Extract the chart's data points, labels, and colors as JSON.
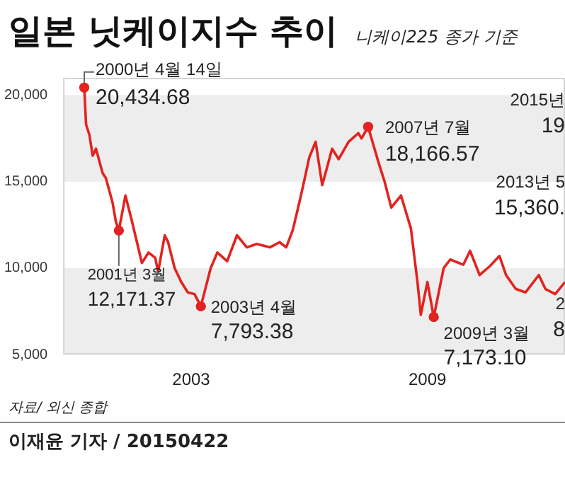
{
  "chart_data": {
    "type": "line",
    "title": "일본 닛케이지수 추이",
    "subtitle": "니케이225 종가 기준",
    "x": [
      "2000-04-14",
      "2000-05",
      "2000-06",
      "2000-07",
      "2000-08",
      "2000-10",
      "2000-11",
      "2001-01",
      "2001-02",
      "2001-03",
      "2001-05",
      "2001-07",
      "2001-10",
      "2001-12",
      "2002-02",
      "2002-03",
      "2002-05",
      "2002-06",
      "2002-08",
      "2002-10",
      "2002-12",
      "2003-02",
      "2003-04",
      "2003-07",
      "2003-09",
      "2003-12",
      "2004-03",
      "2004-06",
      "2004-09",
      "2005-01",
      "2005-04",
      "2005-06",
      "2005-08",
      "2005-10",
      "2005-12",
      "2006-01",
      "2006-03",
      "2006-05",
      "2006-08",
      "2006-10",
      "2007-01",
      "2007-04",
      "2007-05",
      "2007-07",
      "2007-10",
      "2007-12",
      "2008-02",
      "2008-05",
      "2008-08",
      "2008-10",
      "2008-11",
      "2009-01",
      "2009-03",
      "2009-06",
      "2009-08",
      "2009-12",
      "2010-02",
      "2010-05",
      "2010-08",
      "2010-11",
      "2011-01",
      "2011-04",
      "2011-07",
      "2011-11",
      "2012-01",
      "2012-04",
      "2012-07"
    ],
    "series": [
      {
        "color": "#e2231f",
        "values": [
          20434.68,
          18300,
          17700,
          16500,
          16900,
          15500,
          15200,
          13800,
          12700,
          12171.37,
          14200,
          12700,
          10300,
          10900,
          10600,
          9800,
          11900,
          11500,
          10000,
          9200,
          8600,
          8500,
          7793.38,
          10000,
          10900,
          10400,
          11900,
          11200,
          11400,
          11200,
          11500,
          11200,
          12200,
          13800,
          15500,
          16400,
          17300,
          14800,
          16900,
          16300,
          17300,
          17800,
          17500,
          18166.57,
          16200,
          15000,
          13500,
          14200,
          12300,
          9200,
          7300,
          9200,
          7173.1,
          10000,
          10500,
          10200,
          11000,
          9600,
          10100,
          10700,
          9600,
          8800,
          8600,
          9600,
          8800,
          8500,
          9200
        ]
      }
    ],
    "xlim": [
      "1999-10",
      "2012-07"
    ],
    "xticks": [
      "2003",
      "2009"
    ],
    "ylim": [
      5000,
      21000
    ],
    "yticks": [
      {
        "value": 5000,
        "label": "5,000"
      },
      {
        "value": 10000,
        "label": "10,000"
      },
      {
        "value": 15000,
        "label": "15,000"
      },
      {
        "value": 20000,
        "label": "20,000"
      }
    ],
    "bands": [
      {
        "axis": "y",
        "from": 15000,
        "to": 20000,
        "color": "#ededed"
      },
      {
        "axis": "y",
        "from": 5000,
        "to": 10000,
        "color": "#ededed"
      }
    ],
    "legend": false,
    "marker": "none",
    "annotations": [
      {
        "text": "2000년 4월 14일",
        "x": "2000-04-14",
        "y": 20434.68
      },
      {
        "text": "20,434.68",
        "x": "2000-04-14",
        "y": 20434.68
      },
      {
        "text": "2001년 3월",
        "x": "2001-03",
        "y": 12171.37
      },
      {
        "text": "12,171.37",
        "x": "2001-03",
        "y": 12171.37
      },
      {
        "text": "2003년 4월",
        "x": "2003-04",
        "y": 7793.38
      },
      {
        "text": "7,793.38",
        "x": "2003-04",
        "y": 7793.38
      },
      {
        "text": "2007년 7월",
        "x": "2007-07",
        "y": 18166.57
      },
      {
        "text": "18,166.57",
        "x": "2007-07",
        "y": 18166.57
      },
      {
        "text": "2009년 3월",
        "x": "2009-03",
        "y": 7173.1
      },
      {
        "text": "7,173.10",
        "x": "2009-03",
        "y": 7173.1
      },
      "2015년",
      "19",
      "2013년 5",
      "15,360.",
      "2",
      "8",
      "자료/ 외신 종합",
      "이재윤 기자 / 20150422"
    ]
  }
}
